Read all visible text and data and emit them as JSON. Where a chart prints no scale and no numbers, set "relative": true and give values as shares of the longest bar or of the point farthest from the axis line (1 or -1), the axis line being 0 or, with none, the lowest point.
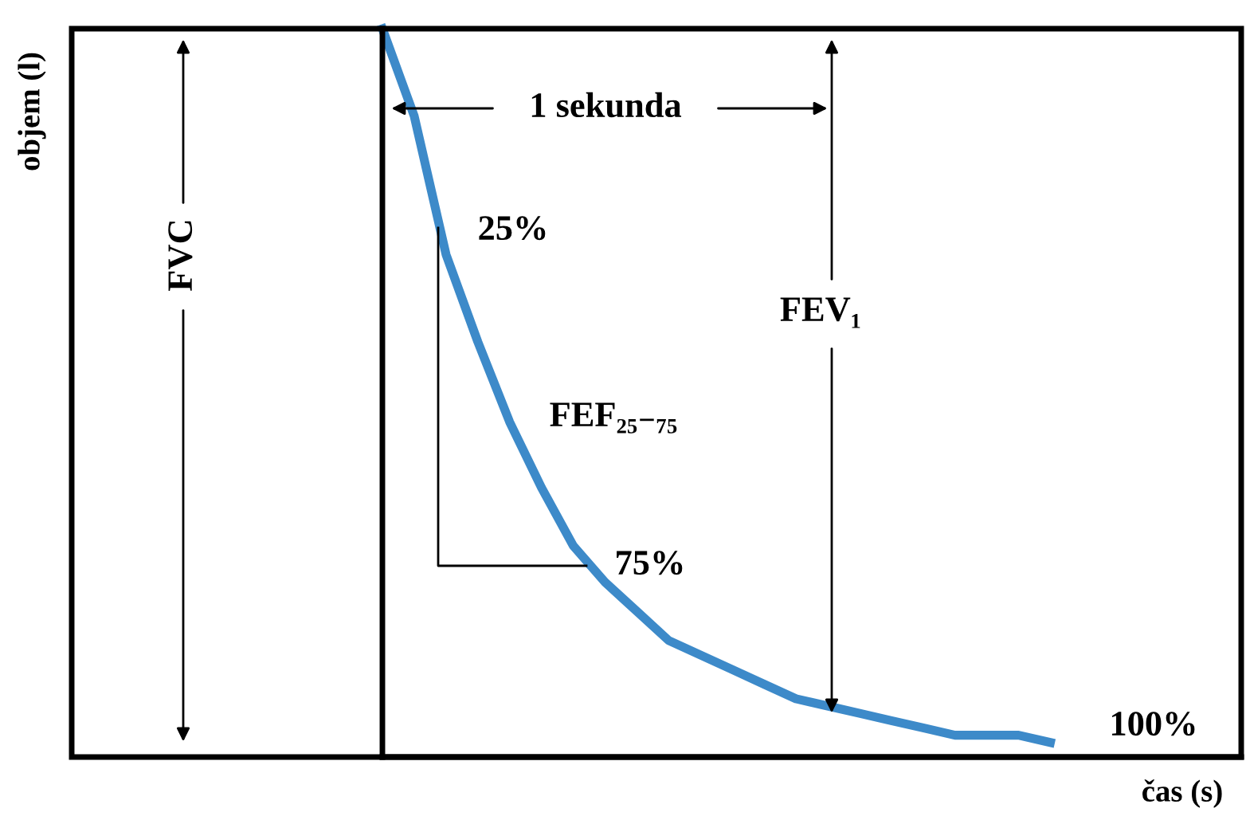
{
  "chart_data": {
    "type": "line",
    "relative": true,
    "xlabel": "čas (s)",
    "categories": [
      null,
      null,
      null,
      null,
      null,
      null,
      null,
      null,
      null,
      null,
      null,
      null,
      null,
      null,
      null,
      null,
      null,
      null,
      null,
      null,
      null,
      null,
      null,
      null,
      null,
      null,
      null,
      null
    ],
    "series": [
      {
        "color": "#3d8ac9",
        "values": [
          1.0,
          0.88,
          0.69,
          0.57,
          0.46,
          0.37,
          0.29,
          0.24,
          0.2,
          0.16,
          0.14,
          0.12,
          0.1,
          0.08,
          0.07,
          0.06,
          0.05,
          0.04,
          0.03,
          0.03,
          0.03,
          0.02,
          null,
          null,
          null,
          null,
          null,
          null
        ]
      }
    ],
    "annotations": [
      "FVC",
      "1 sekunda",
      "25%",
      "FEF₂₅₋₇₅",
      "75%",
      "FEV₁",
      "100%",
      "objem (l)"
    ],
    "legend": false,
    "marker": "none",
    "line_style": "solid"
  }
}
